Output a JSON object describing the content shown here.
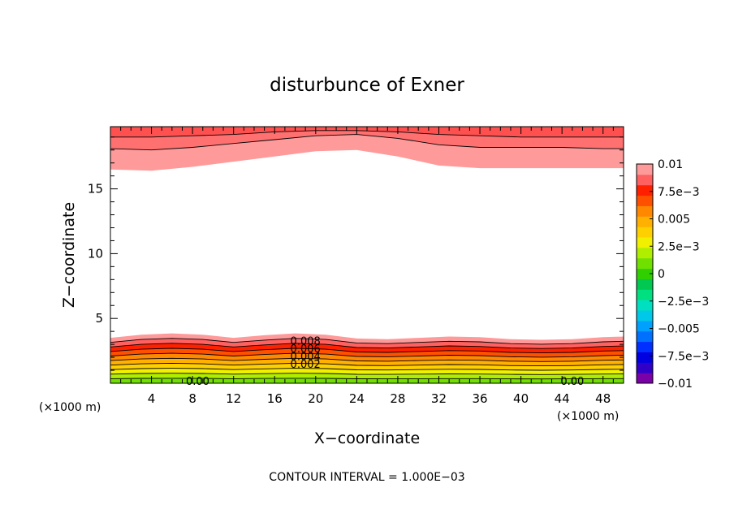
{
  "chart_data": {
    "type": "contour",
    "title": "disturbunce of Exner",
    "xlabel": "X−coordinate",
    "ylabel": "Z−coordinate",
    "x_unit_left": "(×1000 m)",
    "x_unit_right": "(×1000 m)",
    "footer": "CONTOUR INTERVAL = 1.000E−03",
    "xlim": [
      0,
      50
    ],
    "ylim": [
      0,
      19.8
    ],
    "x_ticks": [
      4,
      8,
      12,
      16,
      20,
      24,
      28,
      32,
      36,
      40,
      44,
      48
    ],
    "y_ticks": [
      5,
      10,
      15
    ],
    "contour_interval": 0.001,
    "colorbar": {
      "ticks": [
        "0.01",
        "7.5e−3",
        "0.005",
        "2.5e−3",
        "0",
        "−2.5e−3",
        "−0.005",
        "−7.5e−3",
        "−0.01"
      ],
      "levels": [
        -0.01,
        -0.009,
        -0.008,
        -0.007,
        -0.006,
        -0.005,
        -0.004,
        -0.003,
        -0.002,
        -0.001,
        0,
        0.001,
        0.002,
        0.003,
        0.004,
        0.005,
        0.006,
        0.007,
        0.008,
        0.009,
        0.01
      ],
      "colors": [
        "#7a00a8",
        "#3000c8",
        "#0000e0",
        "#0030ff",
        "#0070ff",
        "#00a0ff",
        "#00c8e8",
        "#00e0c0",
        "#00e080",
        "#00c850",
        "#30d000",
        "#70e000",
        "#b0ee00",
        "#f0f000",
        "#ffd000",
        "#ffb000",
        "#ff8800",
        "#ff5000",
        "#ff2000",
        "#ff6060",
        "#ff9a9a"
      ]
    },
    "contour_labels": [
      {
        "text": "0.008",
        "x": 19,
        "z": 3.3
      },
      {
        "text": "0.006",
        "x": 19,
        "z": 2.7
      },
      {
        "text": "0.004",
        "x": 19,
        "z": 2.1
      },
      {
        "text": "0.002",
        "x": 19,
        "z": 1.5
      },
      {
        "text": "0.00",
        "x": 8.5,
        "z": 0.2
      },
      {
        "text": "0.00",
        "x": 45,
        "z": 0.2
      }
    ],
    "lower_layer": {
      "x": [
        0,
        3,
        6,
        9,
        12,
        15,
        18,
        21,
        24,
        27,
        30,
        33,
        36,
        39,
        42,
        45,
        48,
        50
      ],
      "top_z": [
        3.5,
        3.75,
        3.85,
        3.75,
        3.5,
        3.7,
        3.85,
        3.75,
        3.45,
        3.4,
        3.5,
        3.6,
        3.55,
        3.4,
        3.35,
        3.4,
        3.55,
        3.6
      ],
      "levels_from_top": [
        0.01,
        0.009,
        0.008,
        0.007,
        0.006,
        0.005,
        0.004,
        0.003,
        0.002,
        0.001
      ]
    },
    "upper_layer": {
      "x": [
        0,
        4,
        8,
        12,
        16,
        20,
        24,
        28,
        32,
        36,
        40,
        44,
        48,
        50
      ],
      "bottom_z": [
        16.5,
        16.4,
        16.7,
        17.1,
        17.5,
        17.9,
        18.0,
        17.5,
        16.8,
        16.6,
        16.6,
        16.6,
        16.6,
        16.6
      ],
      "lines_z": [
        [
          18.1,
          18.0,
          18.2,
          18.5,
          18.8,
          19.1,
          19.2,
          18.9,
          18.4,
          18.2,
          18.2,
          18.2,
          18.1,
          18.1
        ],
        [
          19.0,
          19.0,
          19.1,
          19.2,
          19.4,
          19.5,
          19.5,
          19.4,
          19.2,
          19.1,
          19.0,
          19.0,
          19.0,
          19.0
        ]
      ]
    }
  }
}
